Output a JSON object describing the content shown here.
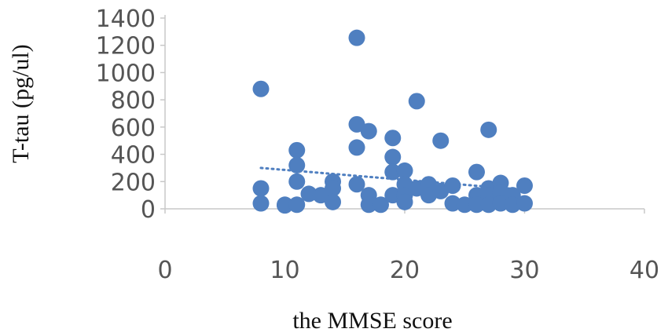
{
  "chart_data": {
    "type": "scatter",
    "xlabel": "the MMSE score",
    "ylabel": "T-tau  (pg/ul)",
    "xlim": [
      0,
      40
    ],
    "ylim": [
      0,
      1400
    ],
    "x_ticks": [
      "0",
      "10",
      "20",
      "30",
      "40"
    ],
    "y_ticks": [
      "0",
      "200",
      "400",
      "600",
      "800",
      "1000",
      "1200",
      "1400"
    ],
    "grid": false,
    "legend": "none",
    "marker_color": "#4f7fc0",
    "trendline": {
      "style": "dotted",
      "color": "#4f7fc0",
      "points": [
        [
          8,
          300
        ],
        [
          30,
          140
        ]
      ]
    },
    "series": [
      {
        "points": [
          [
            8,
            880
          ],
          [
            8,
            150
          ],
          [
            8,
            40
          ],
          [
            10,
            30
          ],
          [
            10,
            25
          ],
          [
            11,
            430
          ],
          [
            11,
            320
          ],
          [
            11,
            200
          ],
          [
            11,
            30
          ],
          [
            12,
            110
          ],
          [
            13,
            100
          ],
          [
            14,
            200
          ],
          [
            14,
            150
          ],
          [
            14,
            50
          ],
          [
            16,
            1255
          ],
          [
            16,
            620
          ],
          [
            16,
            450
          ],
          [
            16,
            180
          ],
          [
            17,
            570
          ],
          [
            17,
            100
          ],
          [
            17,
            30
          ],
          [
            18,
            30
          ],
          [
            19,
            520
          ],
          [
            19,
            380
          ],
          [
            19,
            270
          ],
          [
            19,
            100
          ],
          [
            20,
            280
          ],
          [
            20,
            180
          ],
          [
            20,
            100
          ],
          [
            20,
            50
          ],
          [
            21,
            790
          ],
          [
            21,
            150
          ],
          [
            22,
            180
          ],
          [
            22,
            100
          ],
          [
            23,
            500
          ],
          [
            23,
            130
          ],
          [
            24,
            170
          ],
          [
            24,
            40
          ],
          [
            25,
            30
          ],
          [
            26,
            270
          ],
          [
            26,
            100
          ],
          [
            26,
            30
          ],
          [
            27,
            580
          ],
          [
            27,
            150
          ],
          [
            27,
            100
          ],
          [
            27,
            30
          ],
          [
            28,
            190
          ],
          [
            28,
            120
          ],
          [
            28,
            40
          ],
          [
            29,
            100
          ],
          [
            29,
            30
          ],
          [
            30,
            170
          ],
          [
            30,
            40
          ]
        ]
      }
    ]
  }
}
